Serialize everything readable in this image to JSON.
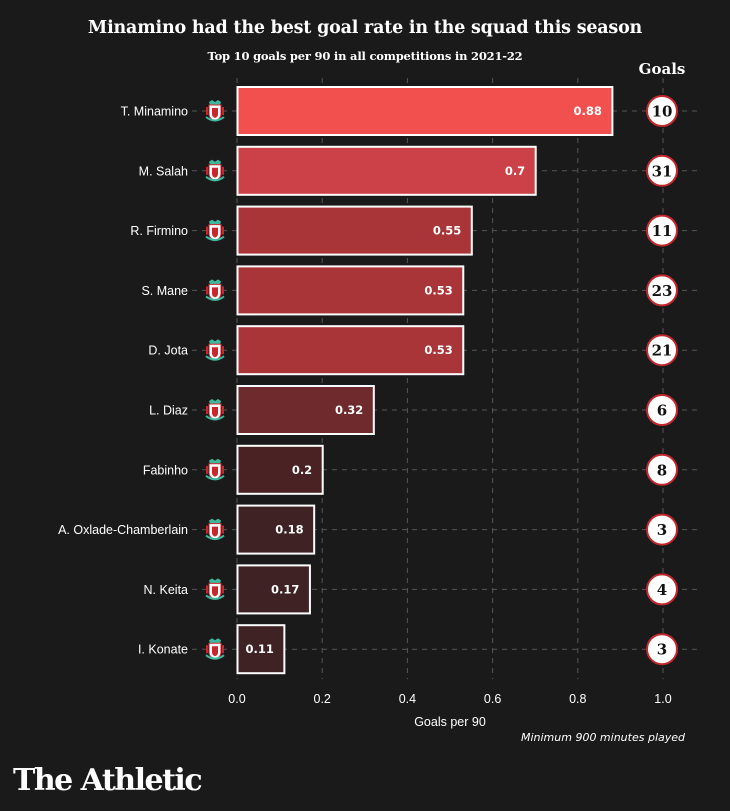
{
  "header": {
    "title": "Minamino had the best goal rate in the squad this season",
    "subtitle": "Top 10 goals per 90 in all competitions in 2021-22",
    "goals_column_label": "Goals"
  },
  "footnote": "Minimum 900 minutes played",
  "brand": "The Athletic",
  "colors": {
    "background": "#1a1a1a",
    "bar_scale": [
      "#3f2224",
      "#4a2224",
      "#6e2a2c",
      "#a93539",
      "#cc4147",
      "#f24f4f"
    ],
    "bar_border": "#ffffff",
    "circle_border": "#c0282d",
    "grid": "#555555"
  },
  "chart_data": {
    "type": "bar",
    "orientation": "horizontal",
    "title": "Minamino had the best goal rate in the squad this season",
    "subtitle": "Top 10 goals per 90 in all competitions in 2021-22",
    "xlabel": "Goals per 90",
    "ylabel": "",
    "xlim": [
      0,
      1.0
    ],
    "xticks": [
      0.0,
      0.2,
      0.4,
      0.6,
      0.8,
      1.0
    ],
    "xtick_labels": [
      "0.0",
      "0.2",
      "0.4",
      "0.6",
      "0.8",
      "1.0"
    ],
    "grid": true,
    "categories": [
      "T. Minamino",
      "M. Salah",
      "R. Firmino",
      "S. Mane",
      "D. Jota",
      "L. Diaz",
      "Fabinho",
      "A. Oxlade-Chamberlain",
      "N. Keita",
      "I. Konate"
    ],
    "values": [
      0.88,
      0.7,
      0.55,
      0.53,
      0.53,
      0.32,
      0.2,
      0.18,
      0.17,
      0.11
    ],
    "value_labels": [
      "0.88",
      "0.7",
      "0.55",
      "0.53",
      "0.53",
      "0.32",
      "0.2",
      "0.18",
      "0.17",
      "0.11"
    ],
    "goals": [
      10,
      31,
      11,
      23,
      21,
      6,
      8,
      3,
      4,
      3
    ],
    "club_icon": "liverpool-crest-icon",
    "annotation": "Minimum 900 minutes played"
  }
}
